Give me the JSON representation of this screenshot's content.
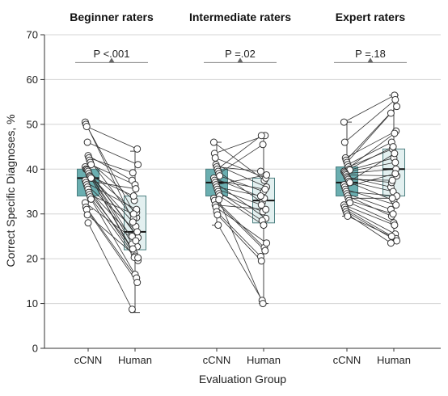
{
  "chart_data": {
    "type": "box",
    "ylabel": "Correct Specific Diagnoses, %",
    "xlabel": "Evaluation Group",
    "ylim": [
      0,
      70
    ],
    "yticks": [
      0,
      10,
      20,
      30,
      40,
      50,
      60,
      70
    ],
    "grid": "horizontal",
    "colors": {
      "cnn_box": "#6aaeb0",
      "human_box": "#e3f0f0",
      "grid": "#d4d4d4"
    },
    "panels": [
      {
        "title": "Beginner raters",
        "p_value": "P <.001",
        "categories": [
          "cCNN",
          "Human"
        ],
        "boxes": [
          {
            "q1": 34,
            "median": 38,
            "q3": 40,
            "whisker_low": 31,
            "whisker_high": 41
          },
          {
            "q1": 22,
            "median": 26,
            "q3": 34,
            "whisker_low": 8,
            "whisker_high": 44
          }
        ],
        "pairs": [
          [
            50.5,
            27.2
          ],
          [
            50,
            29.2
          ],
          [
            49.5,
            44.5
          ],
          [
            46,
            41
          ],
          [
            43,
            37.5
          ],
          [
            42.5,
            39.2
          ],
          [
            42,
            29
          ],
          [
            41.5,
            33
          ],
          [
            41,
            36.5
          ],
          [
            40.5,
            25.5
          ],
          [
            40,
            30.3
          ],
          [
            40,
            22.7
          ],
          [
            39.8,
            24.7
          ],
          [
            39.5,
            23.3
          ],
          [
            39,
            28.2
          ],
          [
            38.5,
            34
          ],
          [
            38.3,
            21.2
          ],
          [
            38,
            20.6
          ],
          [
            37.5,
            35.6
          ],
          [
            37,
            31
          ],
          [
            36.5,
            26
          ],
          [
            36,
            19.6
          ],
          [
            35.5,
            25
          ],
          [
            34.8,
            22.2
          ],
          [
            34.3,
            30
          ],
          [
            33.8,
            20.3
          ],
          [
            33.3,
            16.5
          ],
          [
            32.5,
            24
          ],
          [
            31.5,
            15.7
          ],
          [
            31,
            14.7
          ],
          [
            29.8,
            20.2
          ],
          [
            28,
            8.7
          ]
        ]
      },
      {
        "title": "Intermediate raters",
        "p_value": "P =.02",
        "categories": [
          "cCNN",
          "Human"
        ],
        "boxes": [
          {
            "q1": 34,
            "median": 37,
            "q3": 40,
            "whisker_low": 27.5,
            "whisker_high": 46
          },
          {
            "q1": 28,
            "median": 33,
            "q3": 38,
            "whisker_low": 10,
            "whisker_high": 47.5
          }
        ],
        "pairs": [
          [
            46,
            37.5
          ],
          [
            43.5,
            47.5
          ],
          [
            42.5,
            38
          ],
          [
            41,
            36
          ],
          [
            40.5,
            39.5
          ],
          [
            40,
            47.5
          ],
          [
            39.5,
            32.5
          ],
          [
            39,
            45.5
          ],
          [
            38.5,
            35
          ],
          [
            38,
            33.5
          ],
          [
            37.5,
            35.5
          ],
          [
            37,
            29
          ],
          [
            36.5,
            38.7
          ],
          [
            36,
            34
          ],
          [
            35.5,
            32
          ],
          [
            35,
            28.5
          ],
          [
            34.5,
            30.5
          ],
          [
            34,
            27.5
          ],
          [
            33.5,
            22.5
          ],
          [
            33,
            21.8
          ],
          [
            32,
            31
          ],
          [
            31.5,
            23.5
          ],
          [
            30.5,
            20.5
          ],
          [
            29.8,
            19.5
          ],
          [
            27.5,
            10.7
          ],
          [
            33.2,
            10
          ]
        ]
      },
      {
        "title": "Expert raters",
        "p_value": "P =.18",
        "categories": [
          "cCNN",
          "Human"
        ],
        "boxes": [
          {
            "q1": 34,
            "median": 37,
            "q3": 40.5,
            "whisker_low": 29.5,
            "whisker_high": 50.5
          },
          {
            "q1": 34,
            "median": 40,
            "q3": 44.5,
            "whisker_low": 23.5,
            "whisker_high": 56.5
          }
        ],
        "pairs": [
          [
            50.5,
            56.5
          ],
          [
            46,
            55.5
          ],
          [
            42.5,
            48.5
          ],
          [
            42,
            54
          ],
          [
            41.5,
            52.5
          ],
          [
            41,
            46
          ],
          [
            40.5,
            44.5
          ],
          [
            40,
            45
          ],
          [
            39.8,
            42.5
          ],
          [
            39.5,
            48
          ],
          [
            39.3,
            41.5
          ],
          [
            39,
            40
          ],
          [
            38.7,
            38.5
          ],
          [
            38.3,
            36
          ],
          [
            38,
            37
          ],
          [
            37.7,
            37.5
          ],
          [
            37.3,
            35
          ],
          [
            37,
            33
          ],
          [
            36.5,
            43.5
          ],
          [
            36,
            39
          ],
          [
            35.5,
            32
          ],
          [
            35,
            34
          ],
          [
            34.5,
            31
          ],
          [
            34,
            29.5
          ],
          [
            33.5,
            33.5
          ],
          [
            33,
            30
          ],
          [
            32.5,
            28
          ],
          [
            32,
            27.5
          ],
          [
            31.5,
            25.5
          ],
          [
            31,
            24.5
          ],
          [
            30.5,
            24
          ],
          [
            30,
            23.5
          ],
          [
            29.5,
            25
          ]
        ]
      }
    ]
  }
}
